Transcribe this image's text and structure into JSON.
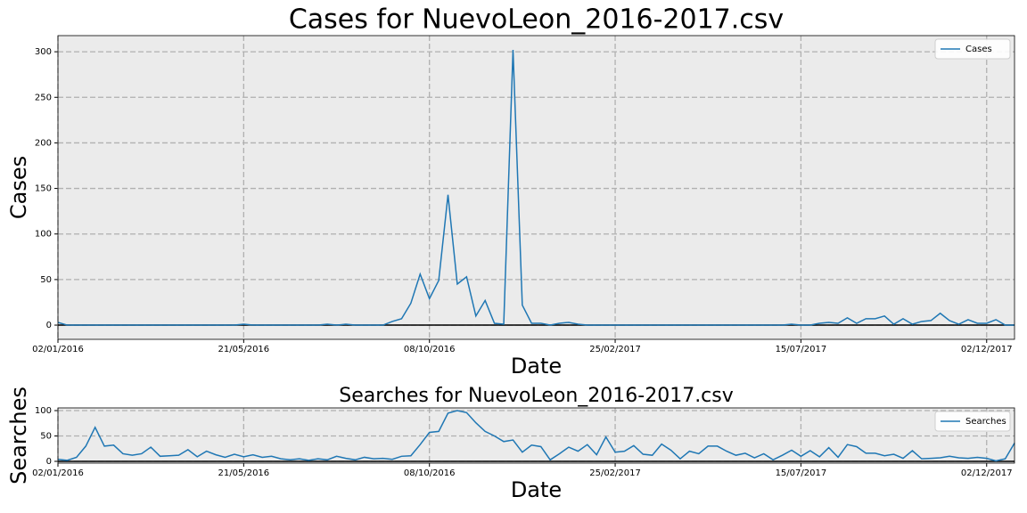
{
  "chart_data": [
    {
      "type": "line",
      "title": "Cases for NuevoLeon_2016-2017.csv",
      "x_label": "Date",
      "y_label": "Cases",
      "x": [
        "02/01/2016",
        "09/01/2016",
        "16/01/2016",
        "23/01/2016",
        "30/01/2016",
        "06/02/2016",
        "13/02/2016",
        "20/02/2016",
        "27/02/2016",
        "05/03/2016",
        "12/03/2016",
        "19/03/2016",
        "26/03/2016",
        "02/04/2016",
        "09/04/2016",
        "16/04/2016",
        "23/04/2016",
        "30/04/2016",
        "07/05/2016",
        "14/05/2016",
        "21/05/2016",
        "28/05/2016",
        "04/06/2016",
        "11/06/2016",
        "18/06/2016",
        "25/06/2016",
        "02/07/2016",
        "09/07/2016",
        "16/07/2016",
        "23/07/2016",
        "30/07/2016",
        "06/08/2016",
        "13/08/2016",
        "20/08/2016",
        "27/08/2016",
        "03/09/2016",
        "10/09/2016",
        "17/09/2016",
        "24/09/2016",
        "01/10/2016",
        "08/10/2016",
        "15/10/2016",
        "22/10/2016",
        "29/10/2016",
        "05/11/2016",
        "12/11/2016",
        "19/11/2016",
        "26/11/2016",
        "03/12/2016",
        "10/12/2016",
        "17/12/2016",
        "24/12/2016",
        "31/12/2016",
        "07/01/2017",
        "14/01/2017",
        "21/01/2017",
        "28/01/2017",
        "04/02/2017",
        "11/02/2017",
        "18/02/2017",
        "25/02/2017",
        "04/03/2017",
        "11/03/2017",
        "18/03/2017",
        "25/03/2017",
        "01/04/2017",
        "08/04/2017",
        "15/04/2017",
        "22/04/2017",
        "29/04/2017",
        "06/05/2017",
        "13/05/2017",
        "20/05/2017",
        "27/05/2017",
        "03/06/2017",
        "10/06/2017",
        "17/06/2017",
        "24/06/2017",
        "01/07/2017",
        "08/07/2017",
        "15/07/2017",
        "22/07/2017",
        "29/07/2017",
        "05/08/2017",
        "12/08/2017",
        "19/08/2017",
        "26/08/2017",
        "02/09/2017",
        "09/09/2017",
        "16/09/2017",
        "23/09/2017",
        "30/09/2017",
        "07/10/2017",
        "14/10/2017",
        "21/10/2017",
        "28/10/2017",
        "04/11/2017",
        "11/11/2017",
        "18/11/2017",
        "25/11/2017",
        "02/12/2017",
        "09/12/2017",
        "16/12/2017",
        "23/12/2017"
      ],
      "series": [
        {
          "name": "Cases",
          "color": "#1f77b4",
          "values": [
            3,
            0,
            0,
            0,
            0,
            0,
            0,
            0,
            0,
            0,
            0,
            0,
            0,
            0,
            0,
            0,
            0,
            0,
            0,
            0,
            1,
            0,
            0,
            0,
            0,
            0,
            0,
            0,
            0,
            1,
            0,
            1,
            0,
            0,
            0,
            0,
            4,
            7,
            24,
            56,
            29,
            49,
            143,
            45,
            53,
            10,
            27,
            2,
            1,
            302,
            22,
            2,
            2,
            0,
            2,
            3,
            1,
            0,
            0,
            0,
            0,
            0,
            0,
            0,
            0,
            0,
            0,
            0,
            0,
            0,
            0,
            0,
            0,
            0,
            0,
            0,
            0,
            0,
            0,
            1,
            0,
            0,
            2,
            3,
            2,
            8,
            2,
            7,
            7,
            10,
            1,
            7,
            1,
            4,
            5,
            13,
            5,
            1,
            6,
            2,
            2,
            6,
            0,
            0
          ]
        }
      ],
      "xlim": [
        "02/01/2016",
        "23/12/2017"
      ],
      "xticks": [
        "02/01/2016",
        "21/05/2016",
        "08/10/2016",
        "25/02/2017",
        "15/07/2017",
        "02/12/2017"
      ],
      "ylim": [
        -15.6,
        317.7
      ],
      "yticks": [
        0,
        50,
        100,
        150,
        200,
        250,
        300
      ],
      "grid": true,
      "legend": "upper right"
    },
    {
      "type": "line",
      "title": "Searches for NuevoLeon_2016-2017.csv",
      "x_label": "Date",
      "y_label": "Searches",
      "x": [
        "02/01/2016",
        "09/01/2016",
        "16/01/2016",
        "23/01/2016",
        "30/01/2016",
        "06/02/2016",
        "13/02/2016",
        "20/02/2016",
        "27/02/2016",
        "05/03/2016",
        "12/03/2016",
        "19/03/2016",
        "26/03/2016",
        "02/04/2016",
        "09/04/2016",
        "16/04/2016",
        "23/04/2016",
        "30/04/2016",
        "07/05/2016",
        "14/05/2016",
        "21/05/2016",
        "28/05/2016",
        "04/06/2016",
        "11/06/2016",
        "18/06/2016",
        "25/06/2016",
        "02/07/2016",
        "09/07/2016",
        "16/07/2016",
        "23/07/2016",
        "30/07/2016",
        "06/08/2016",
        "13/08/2016",
        "20/08/2016",
        "27/08/2016",
        "03/09/2016",
        "10/09/2016",
        "17/09/2016",
        "24/09/2016",
        "01/10/2016",
        "08/10/2016",
        "15/10/2016",
        "22/10/2016",
        "29/10/2016",
        "05/11/2016",
        "12/11/2016",
        "19/11/2016",
        "26/11/2016",
        "03/12/2016",
        "10/12/2016",
        "17/12/2016",
        "24/12/2016",
        "31/12/2016",
        "07/01/2017",
        "14/01/2017",
        "21/01/2017",
        "28/01/2017",
        "04/02/2017",
        "11/02/2017",
        "18/02/2017",
        "25/02/2017",
        "04/03/2017",
        "11/03/2017",
        "18/03/2017",
        "25/03/2017",
        "01/04/2017",
        "08/04/2017",
        "15/04/2017",
        "22/04/2017",
        "29/04/2017",
        "06/05/2017",
        "13/05/2017",
        "20/05/2017",
        "27/05/2017",
        "03/06/2017",
        "10/06/2017",
        "17/06/2017",
        "24/06/2017",
        "01/07/2017",
        "08/07/2017",
        "15/07/2017",
        "22/07/2017",
        "29/07/2017",
        "05/08/2017",
        "12/08/2017",
        "19/08/2017",
        "26/08/2017",
        "02/09/2017",
        "09/09/2017",
        "16/09/2017",
        "23/09/2017",
        "30/09/2017",
        "07/10/2017",
        "14/10/2017",
        "21/10/2017",
        "28/10/2017",
        "04/11/2017",
        "11/11/2017",
        "18/11/2017",
        "25/11/2017",
        "02/12/2017",
        "09/12/2017",
        "16/12/2017",
        "23/12/2017"
      ],
      "series": [
        {
          "name": "Searches",
          "color": "#1f77b4",
          "values": [
            4,
            2,
            8,
            30,
            67,
            30,
            32,
            15,
            12,
            15,
            28,
            10,
            11,
            12,
            23,
            9,
            20,
            13,
            8,
            14,
            9,
            13,
            8,
            10,
            5,
            3,
            5,
            2,
            5,
            3,
            10,
            6,
            3,
            8,
            5,
            6,
            4,
            10,
            11,
            33,
            57,
            59,
            95,
            100,
            96,
            76,
            59,
            50,
            39,
            42,
            18,
            32,
            29,
            3,
            15,
            28,
            20,
            33,
            13,
            48,
            18,
            20,
            31,
            14,
            12,
            34,
            22,
            5,
            20,
            15,
            30,
            30,
            20,
            12,
            16,
            7,
            15,
            3,
            12,
            22,
            10,
            21,
            9,
            27,
            8,
            33,
            29,
            16,
            16,
            11,
            14,
            6,
            21,
            5,
            6,
            7,
            10,
            7,
            6,
            8,
            6,
            1,
            5,
            36
          ]
        }
      ],
      "xlim": [
        "02/01/2016",
        "23/12/2017"
      ],
      "xticks": [
        "02/01/2016",
        "21/05/2016",
        "08/10/2016",
        "25/02/2017",
        "15/07/2017",
        "02/12/2017"
      ],
      "ylim": [
        -3.5,
        105.3
      ],
      "yticks": [
        0,
        50,
        100
      ],
      "grid": true,
      "legend": "upper right"
    }
  ]
}
